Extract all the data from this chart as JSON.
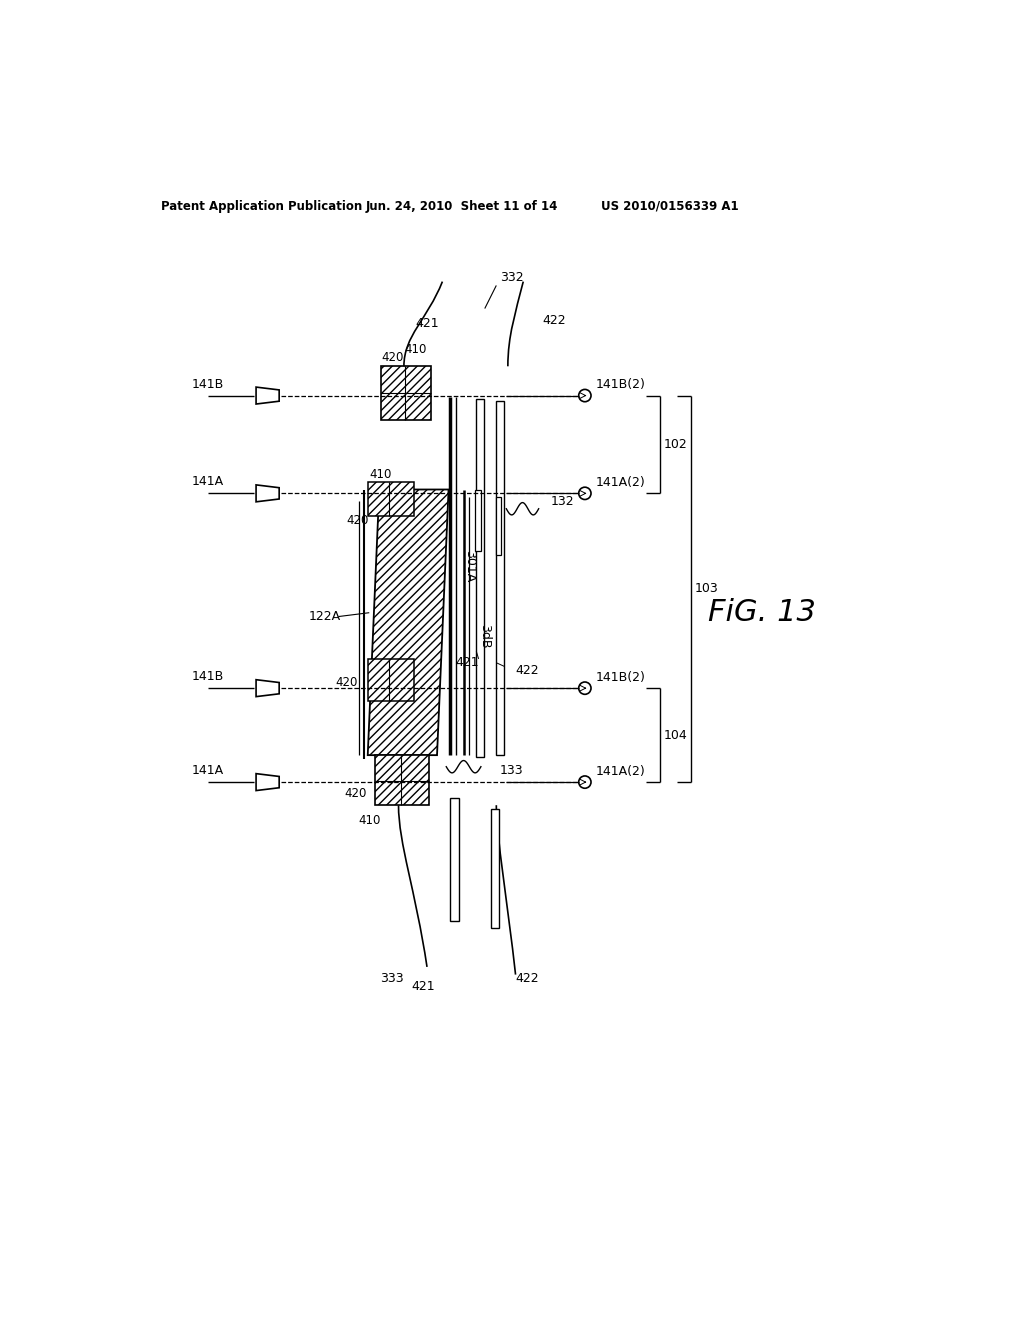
{
  "title_left": "Patent Application Publication",
  "title_mid": "Jun. 24, 2010  Sheet 11 of 14",
  "title_right": "US 2010/0156339 A1",
  "background": "#ffffff",
  "fig_label": "FiG. 13",
  "fig_width": 10.24,
  "fig_height": 13.2,
  "dpi": 100
}
